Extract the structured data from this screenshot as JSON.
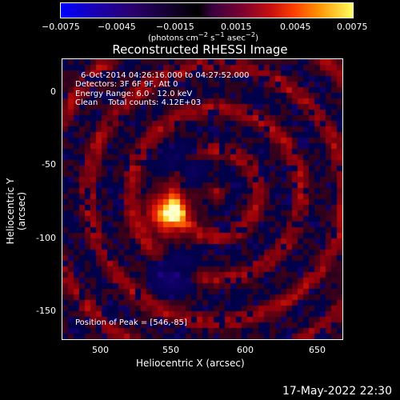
{
  "colorbar": {
    "ticks": [
      "−0.0075",
      "−0.0045",
      "−0.0015",
      "0.0015",
      "0.0045",
      "0.0075"
    ],
    "units_html": "(photons cm<sup>−2</sup> s<sup>−1</sup> asec<sup>−2</sup>)"
  },
  "title": "Reconstructed RHESSI Image",
  "info": {
    "time": "6-Oct-2014 04:26:16.000 to 04:27:52.000",
    "detectors": "Detectors: 3F 6F 9F, Att 0",
    "energy": "Energy Range: 6.0 - 12.0 keV",
    "clean": "Clean    Total counts: 4.12E+03",
    "peak": "Position of Peak = [546,-85]"
  },
  "axes": {
    "xlabel": "Heliocentric X (arcsec)",
    "ylabel": "Heliocentric Y (arcsec)",
    "xticks": [
      "500",
      "550",
      "600",
      "650"
    ],
    "yticks": [
      "0",
      "-50",
      "-100",
      "-150"
    ]
  },
  "timestamp": "17-May-2022 22:30",
  "chart_data": {
    "type": "heatmap",
    "title": "Reconstructed RHESSI Image",
    "xlabel": "Heliocentric X (arcsec)",
    "ylabel": "Heliocentric Y (arcsec)",
    "xlim": [
      472,
      666
    ],
    "ylim": [
      -170,
      20
    ],
    "colorbar_range": [
      -0.0075,
      0.0075
    ],
    "peak": {
      "x": 546,
      "y": -85
    }
  }
}
